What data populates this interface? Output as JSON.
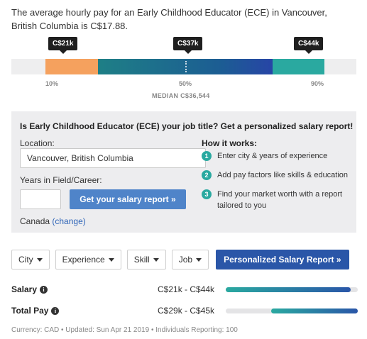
{
  "intro": "The average hourly pay for an Early Childhood Educator (ECE) in Vancouver, British Columbia is C$17.88.",
  "range": {
    "low_label": "C$21k",
    "median_label": "C$37k",
    "high_label": "C$44k",
    "p10": "10%",
    "p50": "50%",
    "p90": "90%",
    "median_text": "MEDIAN C$36,544"
  },
  "panel": {
    "title": "Is Early Childhood Educator (ECE) your job title? Get a personalized salary report!",
    "location_label": "Location:",
    "location_value": "Vancouver, British Columbia",
    "years_label": "Years in Field/Career:",
    "years_value": "",
    "button_label": "Get your salary report »",
    "country": "Canada",
    "change_link": "(change)",
    "how_title": "How it works:",
    "steps": [
      {
        "num": "1",
        "text": "Enter city & years of experience"
      },
      {
        "num": "2",
        "text": "Add pay factors like skills & education"
      },
      {
        "num": "3",
        "text": "Find your market worth with a report tailored to you"
      }
    ]
  },
  "filters": {
    "city": "City",
    "experience": "Experience",
    "skill": "Skill",
    "job": "Job",
    "report_button": "Personalized Salary Report »"
  },
  "rows": {
    "salary_label": "Salary",
    "salary_range": "C$21k - C$44k",
    "total_label": "Total Pay",
    "total_range": "C$29k - C$45k"
  },
  "footer": "Currency: CAD • Updated: Sun Apr 21 2019 • Individuals Reporting: 100",
  "colors": {
    "low": "#f5a15e",
    "mid": "#1e7f86",
    "high": "#2aa9a0",
    "button": "#4f84c9",
    "primary": "#2a56a8"
  }
}
